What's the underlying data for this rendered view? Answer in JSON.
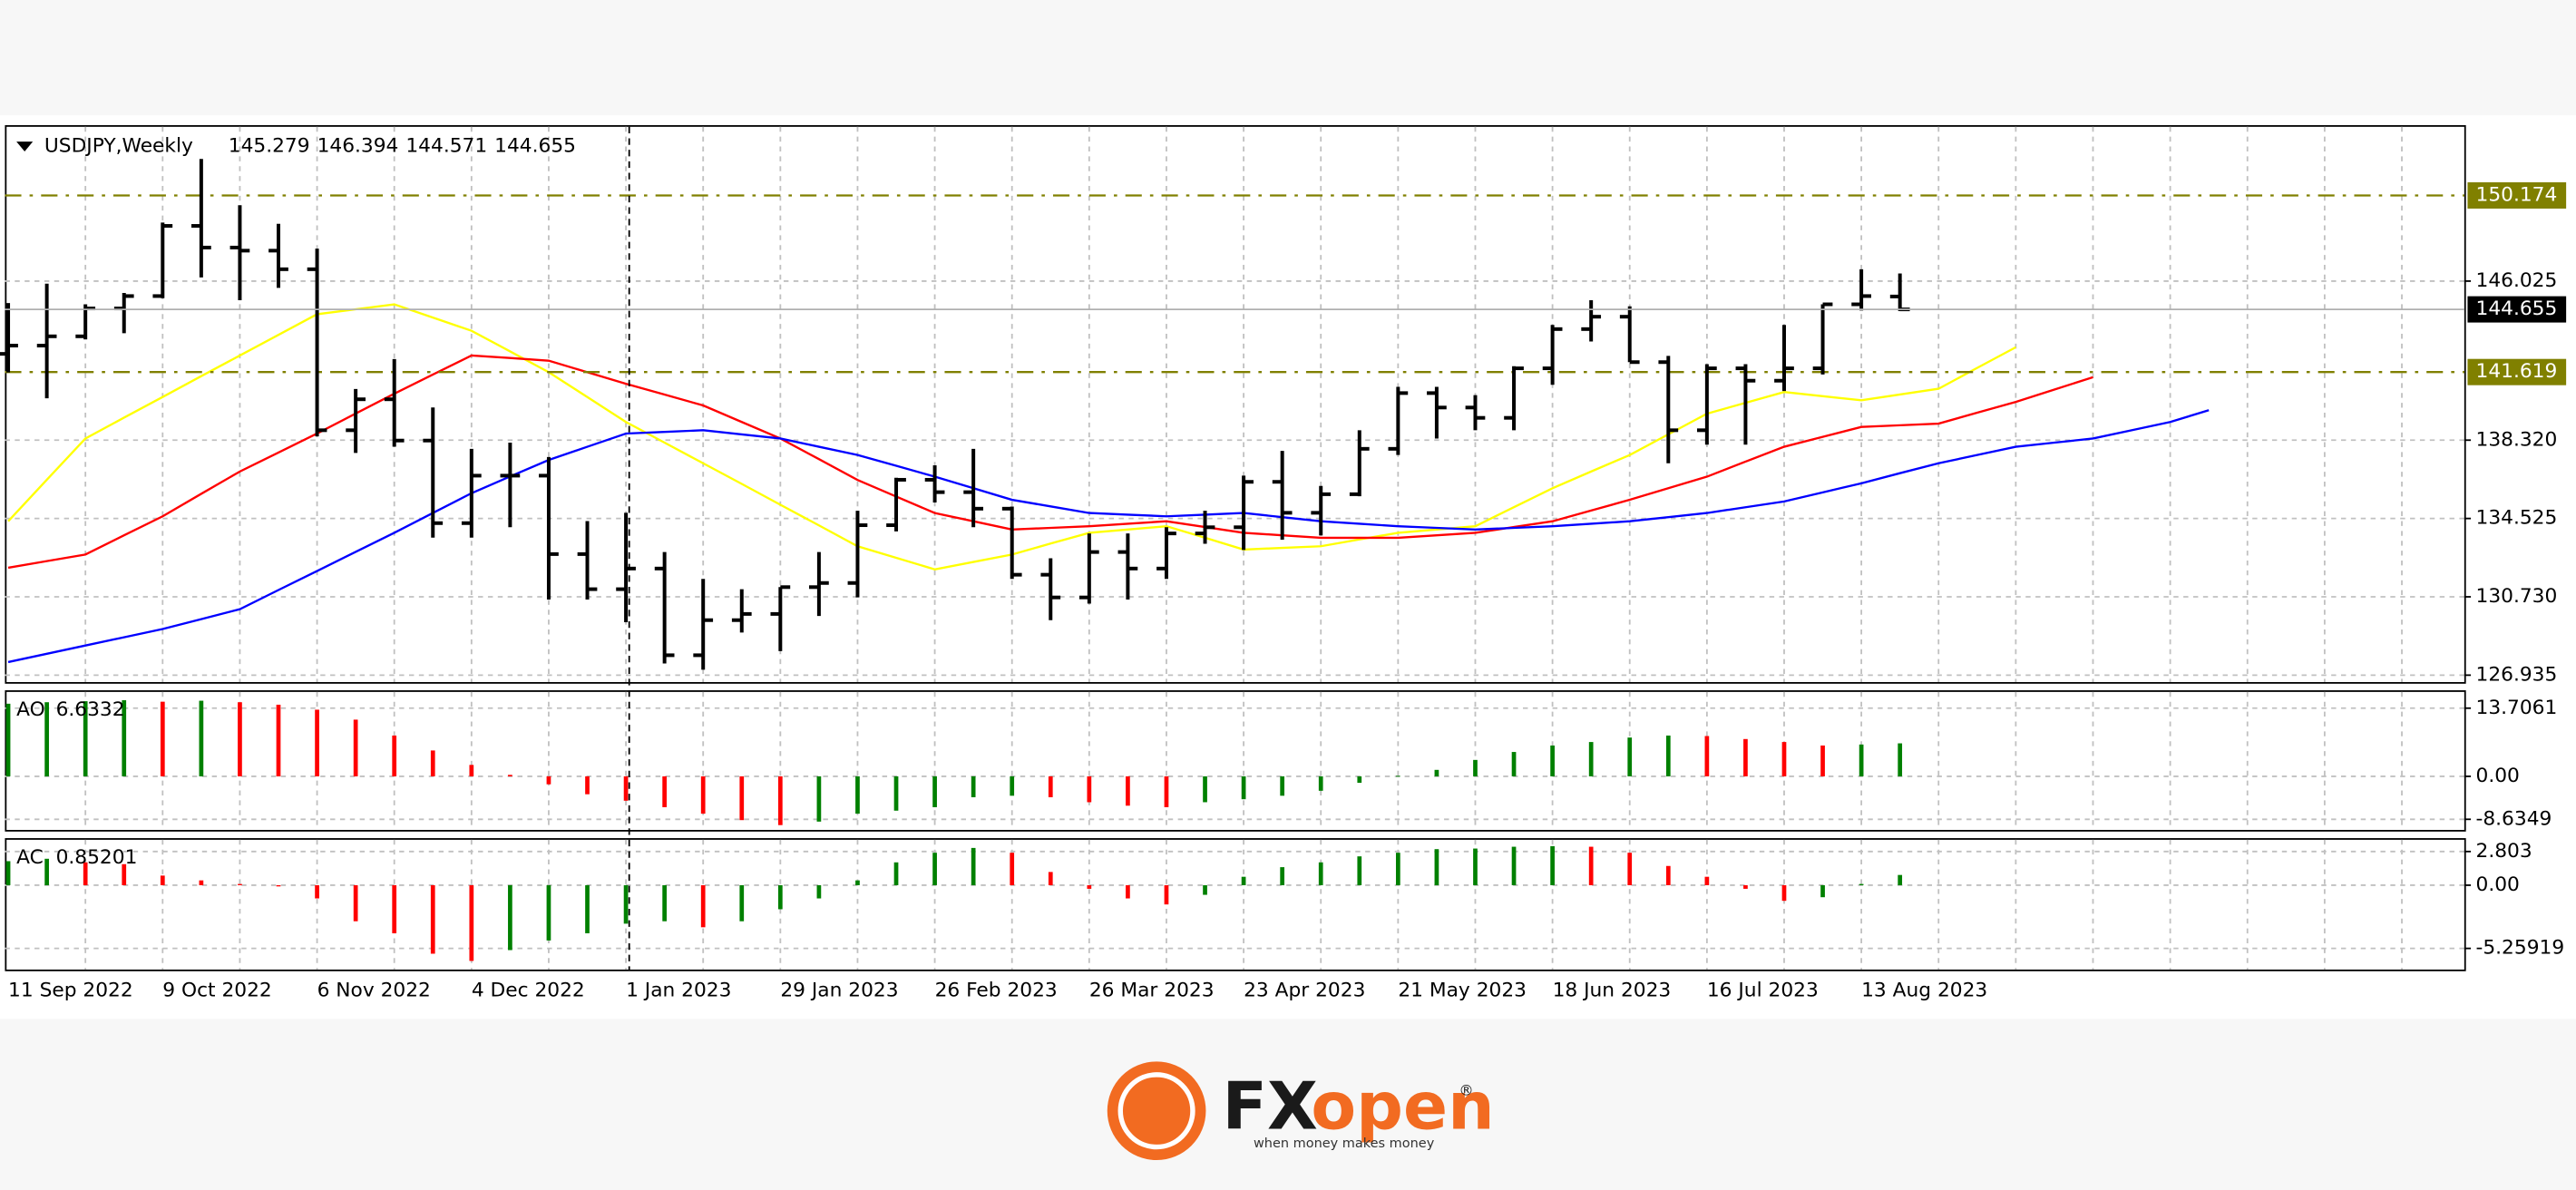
{
  "chart_data": [
    {
      "type": "ohlc",
      "symbol": "USDJPY,Weekly",
      "color": "#000000",
      "categories": [
        "11 Sep 2022",
        null,
        null,
        null,
        "9 Oct 2022",
        null,
        null,
        null,
        "6 Nov 2022",
        null,
        null,
        null,
        "4 Dec 2022",
        null,
        null,
        null,
        "1 Jan 2023",
        null,
        null,
        null,
        "29 Jan 2023",
        null,
        null,
        null,
        "26 Feb 2023",
        null,
        null,
        null,
        "26 Mar 2023",
        null,
        null,
        null,
        "23 Apr 2023",
        null,
        null,
        null,
        "21 May 2023",
        null,
        null,
        null,
        "18 Jun 2023",
        null,
        null,
        null,
        "16 Jul 2023",
        null,
        null,
        null,
        "13 Aug 2023",
        null,
        null,
        null,
        null,
        null,
        null,
        null,
        null,
        null,
        null,
        null,
        null,
        null,
        null,
        null
      ],
      "open": [
        142.5,
        142.9,
        143.35,
        144.7,
        145.3,
        148.7,
        147.65,
        147.5,
        146.6,
        138.8,
        140.3,
        138.3,
        134.3,
        136.6,
        136.6,
        132.8,
        131.1,
        132.1,
        127.9,
        129.6,
        129.9,
        131.2,
        131.4,
        134.2,
        136.4,
        135.8,
        135.0,
        131.8,
        130.7,
        132.9,
        132.1,
        133.8,
        134.1,
        136.3,
        134.8,
        135.7,
        137.9,
        140.6,
        139.9,
        139.4,
        141.8,
        143.7,
        144.3,
        142.1,
        138.8,
        141.8,
        141.2,
        141.8,
        144.9,
        145.279,
        null,
        null,
        null,
        null,
        null,
        null,
        null,
        null,
        null,
        null,
        null,
        null,
        null,
        null
      ],
      "high": [
        144.96,
        145.9,
        144.9,
        145.45,
        148.86,
        151.94,
        149.7,
        148.8,
        147.6,
        140.8,
        142.25,
        139.9,
        137.9,
        138.2,
        137.5,
        134.4,
        134.8,
        132.9,
        131.6,
        131.1,
        131.2,
        132.9,
        134.9,
        136.5,
        137.1,
        137.9,
        135.1,
        132.6,
        133.8,
        133.8,
        134.1,
        134.9,
        136.6,
        137.8,
        136.1,
        138.8,
        140.9,
        140.9,
        140.5,
        141.9,
        143.9,
        145.1,
        144.8,
        142.4,
        142.0,
        142.0,
        143.9,
        144.9,
        146.6,
        146.394,
        null,
        null,
        null,
        null,
        null,
        null,
        null,
        null,
        null,
        null,
        null,
        null,
        null,
        null
      ],
      "low": [
        141.6,
        140.35,
        143.2,
        143.5,
        145.2,
        146.2,
        145.1,
        145.7,
        138.5,
        137.7,
        138.0,
        133.6,
        133.6,
        134.1,
        130.6,
        130.6,
        129.5,
        127.5,
        127.2,
        129.0,
        128.1,
        129.8,
        130.7,
        133.9,
        135.3,
        134.1,
        131.6,
        129.6,
        130.4,
        130.6,
        131.6,
        133.3,
        133.0,
        133.5,
        133.7,
        135.6,
        137.6,
        138.4,
        138.8,
        138.8,
        141.0,
        143.1,
        142.1,
        137.2,
        138.1,
        138.1,
        140.7,
        141.5,
        144.6,
        144.571,
        null,
        null,
        null,
        null,
        null,
        null,
        null,
        null,
        null,
        null,
        null,
        null,
        null,
        null
      ],
      "close": [
        142.9,
        143.35,
        144.7,
        145.3,
        148.7,
        147.65,
        147.5,
        146.6,
        138.8,
        140.3,
        138.3,
        134.3,
        136.6,
        136.6,
        132.8,
        131.1,
        132.1,
        127.9,
        129.6,
        129.9,
        131.2,
        131.4,
        134.2,
        136.4,
        135.8,
        135.0,
        131.8,
        130.7,
        132.9,
        132.1,
        133.8,
        134.1,
        136.3,
        134.8,
        135.7,
        137.9,
        140.6,
        139.9,
        139.4,
        141.8,
        143.7,
        144.3,
        142.1,
        138.8,
        141.8,
        141.2,
        141.8,
        144.9,
        145.3,
        144.655,
        null,
        null,
        null,
        null,
        null,
        null,
        null,
        null,
        null,
        null,
        null,
        null,
        null,
        null
      ],
      "series": [
        {
          "color": "#ffff00",
          "values": [
            134.39,
            136.4,
            138.4,
            139.41,
            140.41,
            141.42,
            142.42,
            143.42,
            144.42,
            144.66,
            144.9,
            144.26,
            143.62,
            142.62,
            141.61,
            140.41,
            139.2,
            138.2,
            137.2,
            136.2,
            135.19,
            134.19,
            133.18,
            132.62,
            132.06,
            132.42,
            132.78,
            133.31,
            133.83,
            133.99,
            134.15,
            133.59,
            133.02,
            133.1,
            133.18,
            133.51,
            133.83,
            133.99,
            134.15,
            135.07,
            135.99,
            136.8,
            137.6,
            138.6,
            139.6,
            140.13,
            140.65,
            140.45,
            140.25,
            140.53,
            140.81,
            141.82,
            142.82,
            null,
            null,
            null,
            null,
            null,
            null,
            null,
            null,
            null,
            null,
            null
          ]
        },
        {
          "color": "#ff0000",
          "values": [
            132.14,
            132.46,
            132.78,
            133.71,
            134.63,
            135.72,
            136.8,
            137.72,
            138.64,
            139.61,
            140.57,
            141.5,
            142.42,
            142.3,
            142.17,
            141.61,
            141.05,
            140.53,
            140.0,
            139.2,
            138.4,
            137.4,
            136.39,
            135.59,
            134.79,
            134.39,
            133.99,
            134.07,
            134.15,
            134.27,
            134.39,
            134.11,
            133.83,
            133.71,
            133.59,
            133.59,
            133.59,
            133.71,
            133.83,
            134.11,
            134.39,
            134.91,
            135.43,
            135.99,
            136.55,
            137.28,
            138.0,
            138.48,
            138.96,
            139.04,
            139.12,
            139.65,
            140.17,
            140.77,
            141.37,
            null,
            null,
            null,
            null,
            null,
            null,
            null,
            null,
            null
          ]
        },
        {
          "color": "#0000ff",
          "values": [
            127.57,
            127.97,
            128.37,
            128.77,
            129.17,
            129.65,
            130.13,
            131.06,
            131.98,
            132.91,
            133.83,
            134.79,
            135.75,
            136.56,
            137.36,
            138.0,
            138.64,
            138.72,
            138.8,
            138.6,
            138.4,
            138.0,
            137.6,
            137.08,
            136.55,
            135.99,
            135.43,
            135.11,
            134.79,
            134.71,
            134.63,
            134.71,
            134.79,
            134.59,
            134.39,
            134.27,
            134.15,
            134.07,
            133.99,
            134.07,
            134.15,
            134.27,
            134.39,
            134.59,
            134.79,
            135.07,
            135.35,
            135.79,
            136.23,
            136.72,
            137.2,
            137.6,
            138.0,
            138.2,
            138.4,
            138.8,
            139.2,
            139.77,
            null,
            null,
            null,
            null,
            null,
            null
          ]
        }
      ],
      "levels": [
        150.174,
        141.619
      ],
      "level_color": "#808000",
      "ylim": [
        126.6,
        153.5
      ],
      "yticks": [
        126.935,
        {
          "value": 130.73,
          "label": "130.730"
        },
        134.525,
        {
          "value": 138.32,
          "label": "138.320"
        },
        146.025
      ],
      "grid": true
    },
    {
      "type": "bar",
      "name": "AO",
      "up_color": "#008000",
      "down_color": "#ff0000",
      "values": [
        14.6,
        14.9,
        15.1,
        15.3,
        15.0,
        15.2,
        14.9,
        14.4,
        13.4,
        11.4,
        8.2,
        5.2,
        2.3,
        0.3,
        -1.6,
        -3.6,
        -4.9,
        -6.2,
        -7.5,
        -8.8,
        -9.8,
        -9.1,
        -7.5,
        -6.9,
        -6.2,
        -4.2,
        -3.9,
        -4.2,
        -5.2,
        -5.9,
        -6.2,
        -5.2,
        -4.6,
        -3.9,
        -2.9,
        -1.3,
        0.1,
        1.3,
        3.3,
        4.9,
        6.2,
        6.9,
        7.8,
        8.2,
        8.1,
        7.5,
        6.9,
        6.2,
        6.4,
        6.6332,
        null,
        null,
        null,
        null,
        null,
        null,
        null,
        null,
        null,
        null,
        null,
        null,
        null,
        null
      ],
      "ylim": [
        -10.77,
        16.97
      ],
      "yticks": [
        13.7061,
        {
          "value": 0,
          "label": "0.00"
        },
        -8.6349
      ]
    },
    {
      "type": "bar",
      "name": "AC",
      "up_color": "#008000",
      "down_color": "#ff0000",
      "values": [
        2.0,
        2.2,
        1.9,
        1.75,
        0.8,
        0.4,
        0.1,
        -0.1,
        -1.1,
        -3.0,
        -4.0,
        -5.7,
        -6.3,
        -5.4,
        -4.6,
        -4.0,
        -3.2,
        -3.0,
        -3.5,
        -3.0,
        -2.0,
        -1.1,
        0.4,
        1.9,
        2.7,
        3.1,
        2.7,
        1.1,
        -0.3,
        -1.1,
        -1.6,
        -0.8,
        0.7,
        1.5,
        1.9,
        2.4,
        2.7,
        3.0,
        3.05,
        3.2,
        3.25,
        3.2,
        2.7,
        1.6,
        0.7,
        -0.3,
        -1.3,
        -1.0,
        0.1,
        0.85201,
        null,
        null,
        null,
        null,
        null,
        null,
        null,
        null,
        null,
        null,
        null,
        null,
        null,
        null
      ],
      "ylim": [
        -7.02,
        3.78
      ],
      "yticks": [
        2.803,
        {
          "value": 0,
          "label": "0.00"
        },
        -5.25919
      ]
    }
  ],
  "logo": {
    "fx": "FX",
    "open": "open",
    "mark": "®",
    "tagline": "when money makes money"
  }
}
